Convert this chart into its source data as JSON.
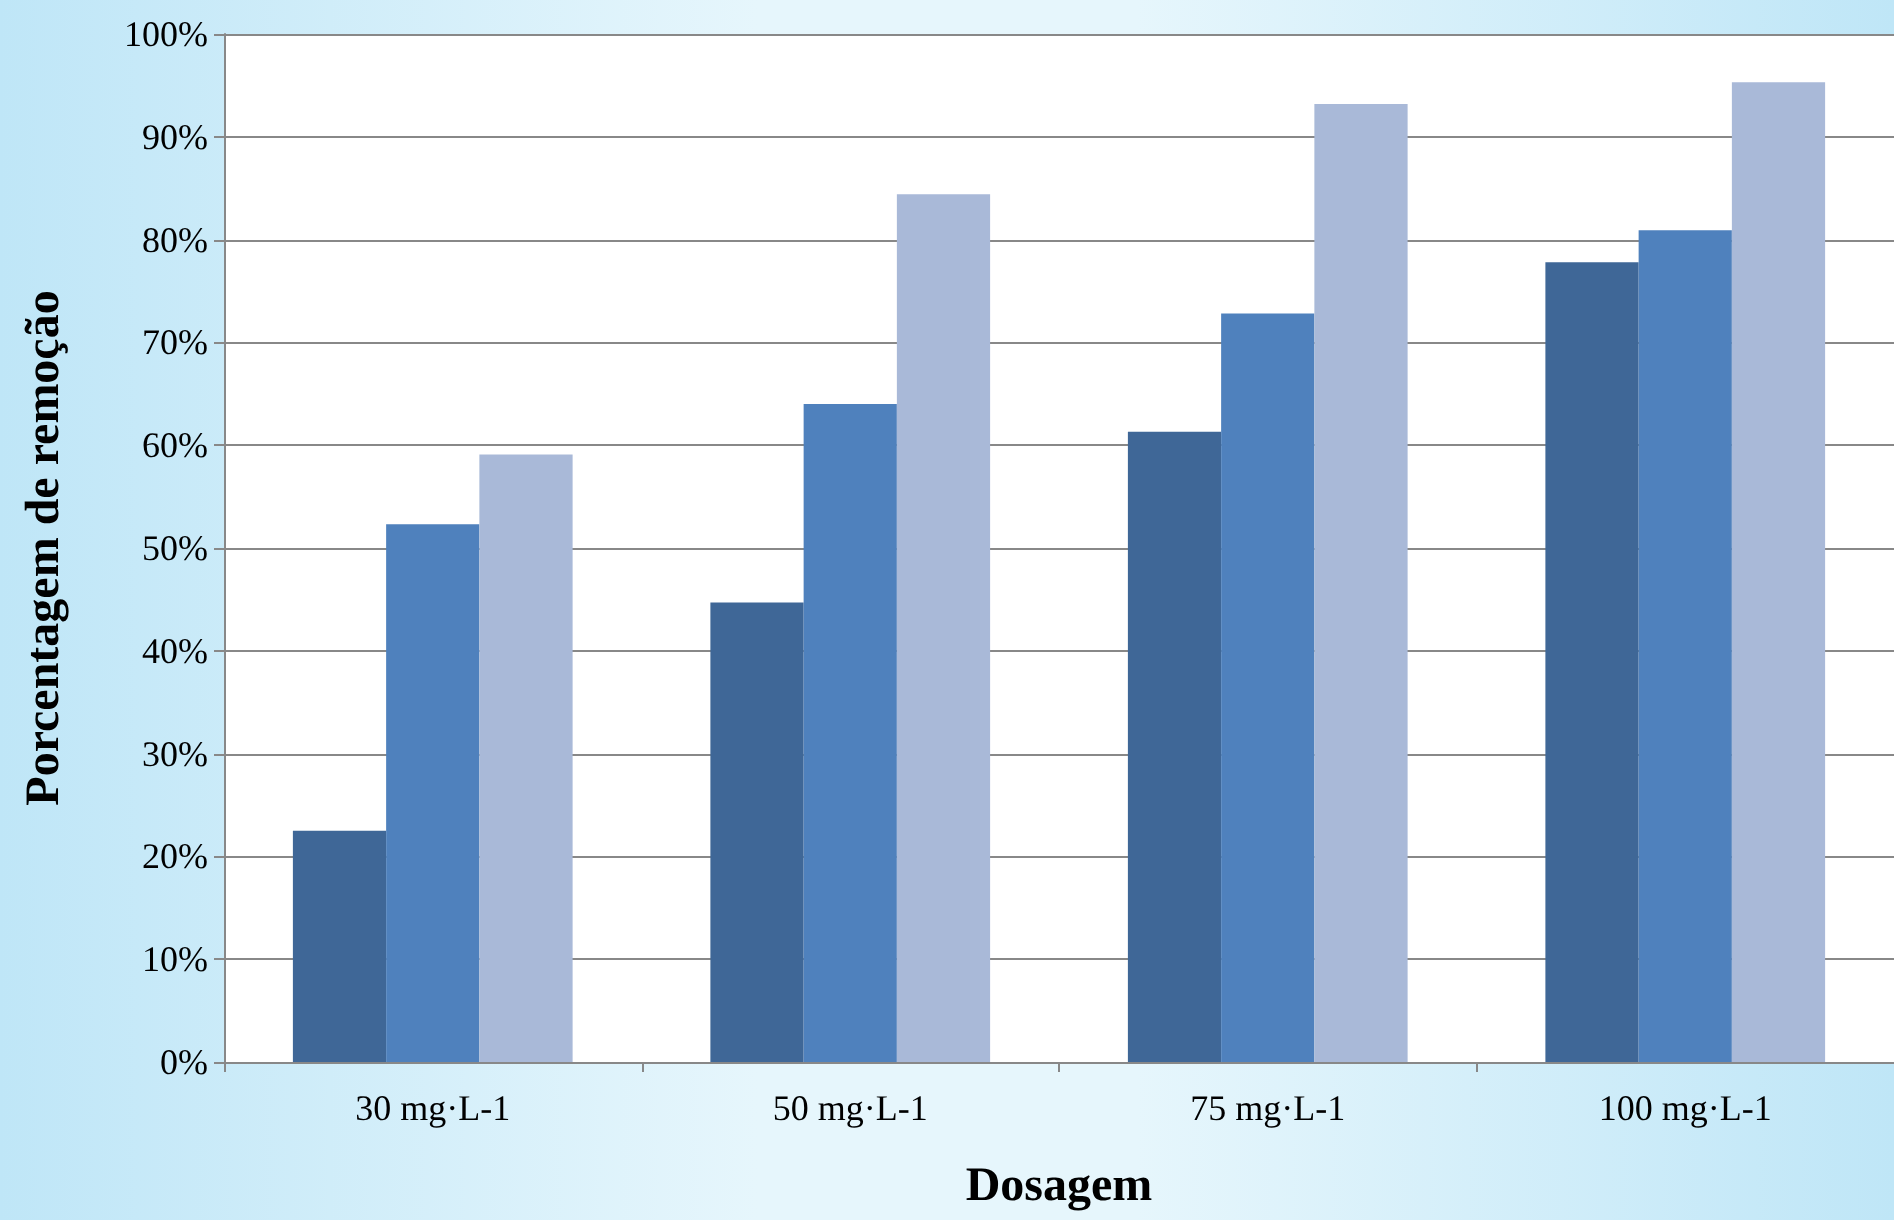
{
  "chart_data": {
    "type": "bar",
    "xlabel": "Dosagem",
    "ylabel": "Porcentagem de remoção",
    "categories": [
      "30 mg·L-1",
      "50 mg·L-1",
      "75 mg·L-1",
      "100 mg·L-1"
    ],
    "series": [
      {
        "color": "#3f6797",
        "values": [
          22.5,
          44.7,
          61.3,
          77.8
        ]
      },
      {
        "color": "#4f81bd",
        "values": [
          52.3,
          64.0,
          72.8,
          80.9
        ]
      },
      {
        "color": "#a9b9d8",
        "values": [
          59.1,
          84.4,
          93.2,
          95.3
        ]
      }
    ],
    "ylim": [
      0,
      100
    ],
    "yticks": [
      {
        "value": 0,
        "label": "0%"
      },
      {
        "value": 10,
        "label": "10%"
      },
      {
        "value": 20,
        "label": "20%"
      },
      {
        "value": 30,
        "label": "30%"
      },
      {
        "value": 40,
        "label": "40%"
      },
      {
        "value": 50,
        "label": "50%"
      },
      {
        "value": 60,
        "label": "60%"
      },
      {
        "value": 70,
        "label": "70%"
      },
      {
        "value": 80,
        "label": "80%"
      },
      {
        "value": 90,
        "label": "90%"
      },
      {
        "value": 100,
        "label": "100%"
      }
    ],
    "grid": "y"
  }
}
